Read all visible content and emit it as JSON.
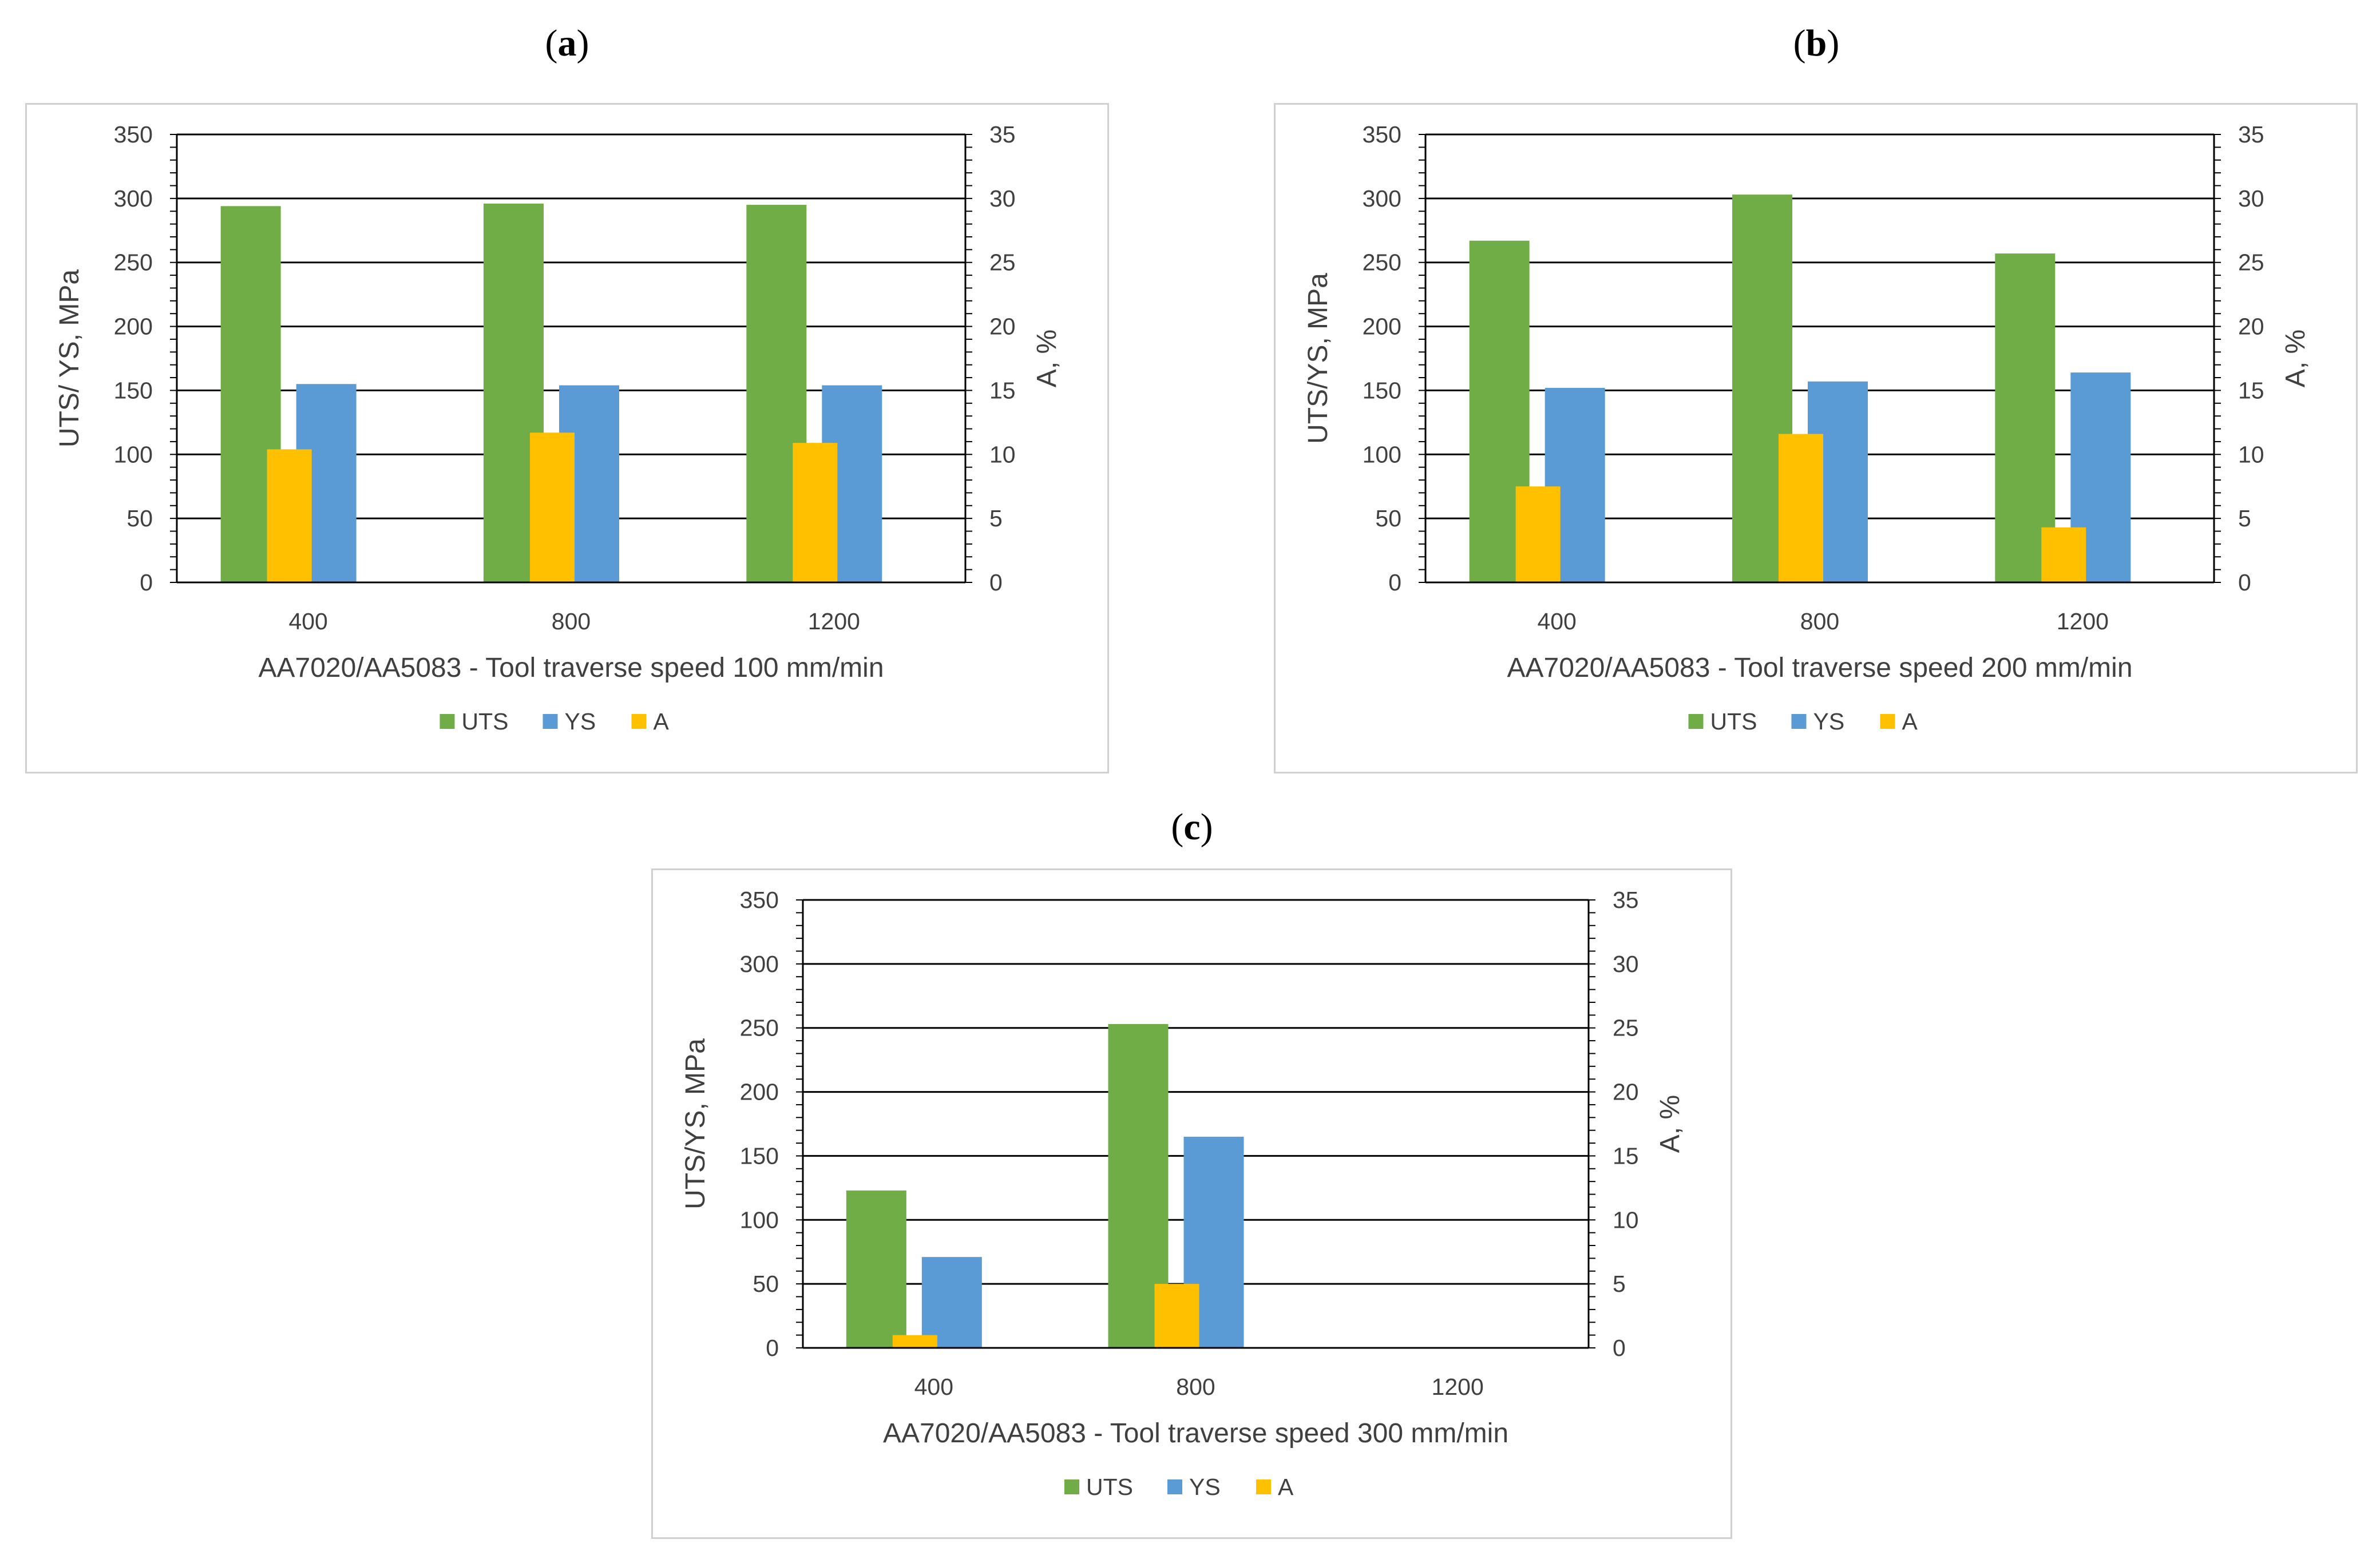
{
  "panels": [
    {
      "label": "(a)",
      "label_open": "(",
      "label_letter": "a",
      "label_close": ")",
      "chart_data": {
        "type": "bar",
        "title": "",
        "xlabel": "AA7020/AA5083 - Tool traverse speed 100 mm/min",
        "ylabel": "UTS/ YS, MPa",
        "y2label": "A, %",
        "categories": [
          "400",
          "800",
          "1200"
        ],
        "ylim": [
          0,
          350
        ],
        "y2lim": [
          0,
          35
        ],
        "yticks": [
          "0",
          "50",
          "100",
          "150",
          "200",
          "250",
          "300",
          "350"
        ],
        "y2ticks": [
          "0",
          "5",
          "10",
          "15",
          "20",
          "25",
          "30",
          "35"
        ],
        "series": [
          {
            "name": "UTS",
            "axis": "left",
            "color": "#70ad47",
            "values": [
              294,
              296,
              295
            ]
          },
          {
            "name": "YS",
            "axis": "left",
            "color": "#5b9bd5",
            "values": [
              155,
              154,
              154
            ]
          },
          {
            "name": "A",
            "axis": "right",
            "color": "#ffc000",
            "values": [
              10.4,
              11.7,
              10.9
            ]
          }
        ],
        "legend": "bottom"
      }
    },
    {
      "label": "(b)",
      "label_open": "(",
      "label_letter": "b",
      "label_close": ")",
      "chart_data": {
        "type": "bar",
        "title": "",
        "xlabel": "AA7020/AA5083 - Tool traverse speed 200 mm/min",
        "ylabel": "UTS/YS, MPa",
        "y2label": "A, %",
        "categories": [
          "400",
          "800",
          "1200"
        ],
        "ylim": [
          0,
          350
        ],
        "y2lim": [
          0,
          35
        ],
        "yticks": [
          "0",
          "50",
          "100",
          "150",
          "200",
          "250",
          "300",
          "350"
        ],
        "y2ticks": [
          "0",
          "5",
          "10",
          "15",
          "20",
          "25",
          "30",
          "35"
        ],
        "series": [
          {
            "name": "UTS",
            "axis": "left",
            "color": "#70ad47",
            "values": [
              267,
              303,
              257
            ]
          },
          {
            "name": "YS",
            "axis": "left",
            "color": "#5b9bd5",
            "values": [
              152,
              157,
              164
            ]
          },
          {
            "name": "A",
            "axis": "right",
            "color": "#ffc000",
            "values": [
              7.5,
              11.6,
              4.3
            ]
          }
        ],
        "legend": "bottom"
      }
    },
    {
      "label": "(c)",
      "label_open": "(",
      "label_letter": "c",
      "label_close": ")",
      "chart_data": {
        "type": "bar",
        "title": "",
        "xlabel": "AA7020/AA5083 - Tool traverse speed 300 mm/min",
        "ylabel": "UTS/YS, MPa",
        "y2label": "A, %",
        "categories": [
          "400",
          "800",
          "1200"
        ],
        "ylim": [
          0,
          350
        ],
        "y2lim": [
          0,
          35
        ],
        "yticks": [
          "0",
          "50",
          "100",
          "150",
          "200",
          "250",
          "300",
          "350"
        ],
        "y2ticks": [
          "0",
          "5",
          "10",
          "15",
          "20",
          "25",
          "30",
          "35"
        ],
        "series": [
          {
            "name": "UTS",
            "axis": "left",
            "color": "#70ad47",
            "values": [
              123,
              253,
              0
            ]
          },
          {
            "name": "YS",
            "axis": "left",
            "color": "#5b9bd5",
            "values": [
              71,
              165,
              0
            ]
          },
          {
            "name": "A",
            "axis": "right",
            "color": "#ffc000",
            "values": [
              1.0,
              5.0,
              0
            ]
          }
        ],
        "legend": "bottom"
      }
    }
  ]
}
